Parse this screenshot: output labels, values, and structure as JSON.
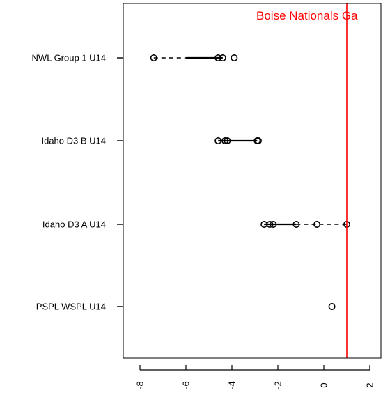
{
  "chart_data": {
    "type": "scatter",
    "orientation": "horizontal",
    "categories": [
      "NWL Group 1 U14",
      "Idaho D3 B U14",
      "Idaho D3 A U14",
      "PSPL WSPL U14"
    ],
    "groups": [
      {
        "name": "NWL Group 1 U14",
        "points": [
          -7.4,
          -4.6,
          -4.4,
          -3.9
        ],
        "whisker": [
          -7.4,
          -6.0
        ],
        "box": [
          -6.0,
          -4.4
        ]
      },
      {
        "name": "Idaho D3 B U14",
        "points": [
          -4.6,
          -4.3,
          -4.2,
          -2.9,
          -2.85
        ],
        "whisker": [
          -4.6,
          -4.6
        ],
        "box": [
          -4.6,
          -2.9
        ]
      },
      {
        "name": "Idaho D3 A U14",
        "points": [
          -2.6,
          -2.35,
          -2.2,
          -1.2,
          -0.3,
          1.0
        ],
        "whisker": [
          -1.2,
          1.0
        ],
        "box": [
          -2.6,
          -1.2
        ]
      },
      {
        "name": "PSPL WSPL U14",
        "points": [
          0.35
        ],
        "whisker": [
          0.35,
          0.35
        ],
        "box": [
          0.35,
          0.35
        ]
      }
    ],
    "x_ticks": [
      "-8",
      "-6",
      "-4",
      "-2",
      "0",
      "2"
    ],
    "x_tick_values": [
      -8,
      -6,
      -4,
      -2,
      0,
      2
    ],
    "xlim": [
      -8.8,
      2.5
    ],
    "reference_line": {
      "value": 1.0,
      "label": "Boise Nationals Ga",
      "color": "#ff0000"
    },
    "point_color": "#000000",
    "grid": false
  }
}
